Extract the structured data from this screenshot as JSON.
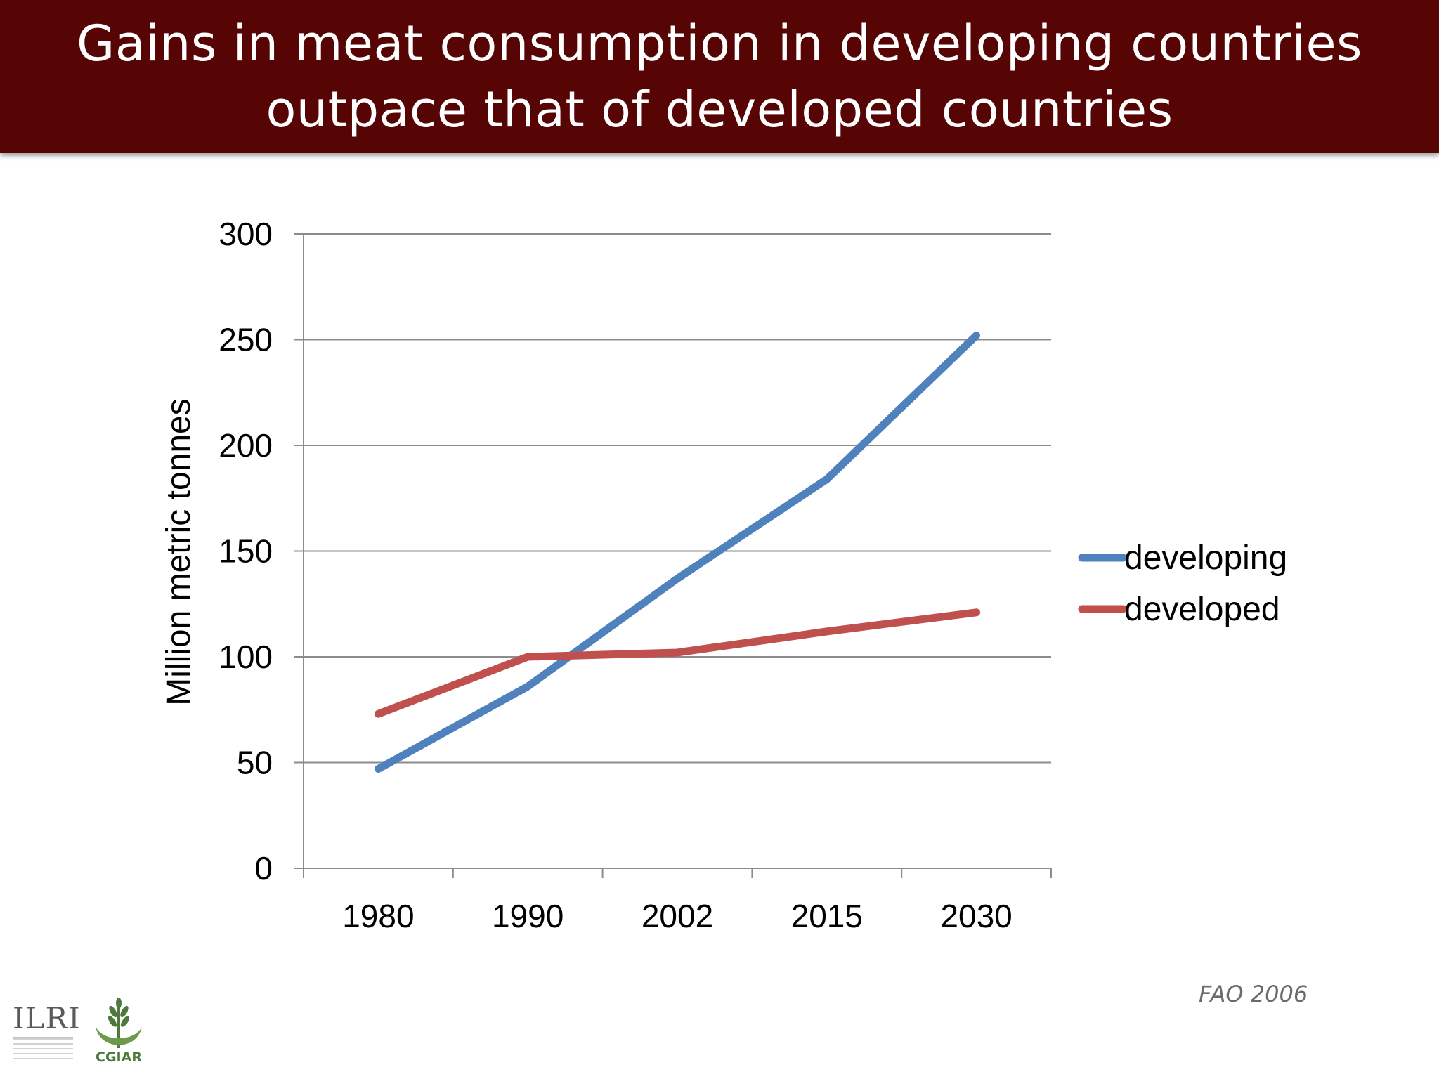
{
  "slide": {
    "title_line1": "Gains in meat consumption in developing countries",
    "title_line2": "outpace that of developed countries",
    "source": "FAO 2006",
    "logos": {
      "ilri_text": "ILRI",
      "cgiar_text": "CGIAR"
    }
  },
  "chart_data": {
    "type": "line",
    "categories": [
      "1980",
      "1990",
      "2002",
      "2015",
      "2030"
    ],
    "ylabel": "Million metric tonnes",
    "xlabel": "",
    "ylim": [
      0,
      300
    ],
    "yticks": [
      0,
      50,
      100,
      150,
      200,
      250,
      300
    ],
    "grid": true,
    "legend_position": "right",
    "series": [
      {
        "name": "developing",
        "color": "#4f81bd",
        "values": [
          47,
          86,
          137,
          184,
          252
        ]
      },
      {
        "name": "developed",
        "color": "#c0504d",
        "values": [
          73,
          100,
          102,
          112,
          121
        ]
      }
    ]
  }
}
